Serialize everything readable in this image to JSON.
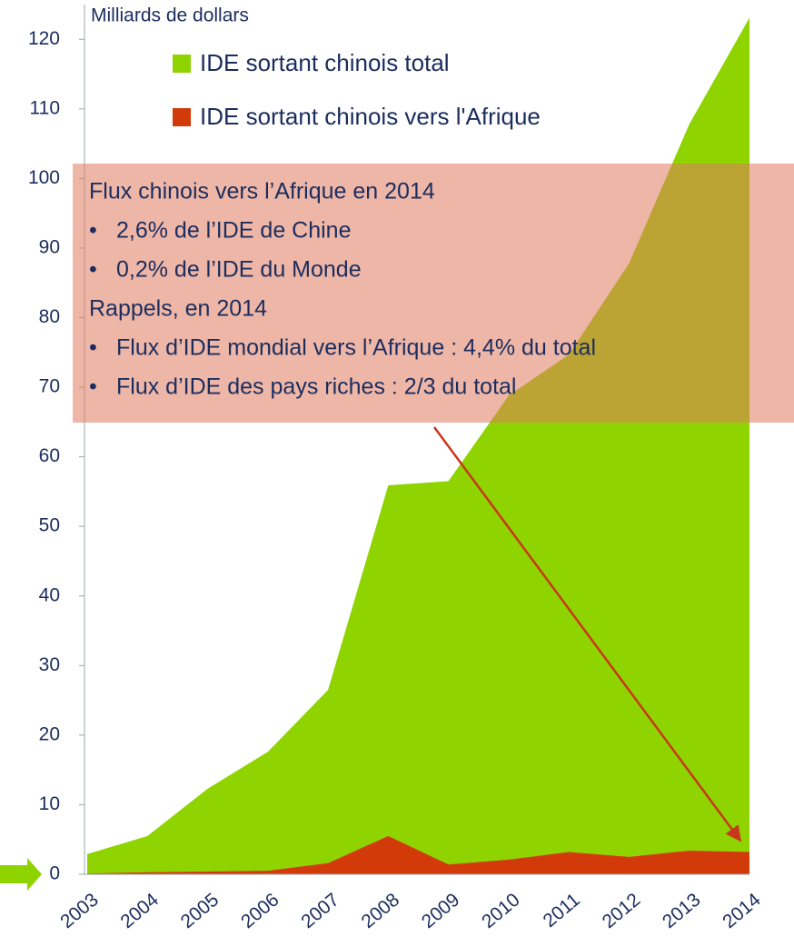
{
  "chart_data": {
    "type": "area",
    "y_label": "Milliards de dollars",
    "categories": [
      "2003",
      "2004",
      "2005",
      "2006",
      "2007",
      "2008",
      "2009",
      "2010",
      "2011",
      "2012",
      "2013",
      "2014"
    ],
    "series": [
      {
        "name": "IDE sortant chinois total",
        "color": "#8fd400",
        "values": [
          2.9,
          5.5,
          12.3,
          17.6,
          26.5,
          55.9,
          56.5,
          68.8,
          74.7,
          87.8,
          107.8,
          123.1
        ]
      },
      {
        "name": "IDE sortant chinois vers l'Afrique",
        "color": "#d23a0a",
        "values": [
          0.1,
          0.3,
          0.4,
          0.5,
          1.6,
          5.5,
          1.4,
          2.1,
          3.2,
          2.5,
          3.4,
          3.2
        ]
      }
    ],
    "ylim": [
      0,
      125
    ],
    "yticks": [
      0,
      10,
      20,
      30,
      40,
      50,
      60,
      70,
      80,
      90,
      100,
      110,
      120
    ],
    "annotations": [
      {
        "heading": "Flux chinois vers l’Afrique en 2014",
        "items": [
          "2,6% de l’IDE de Chine",
          "0,2% de l’IDE du Monde"
        ]
      },
      {
        "heading": "Rappels, en 2014",
        "items": [
          "Flux d’IDE mondial vers l’Afrique : 4,4% du total",
          "Flux d’IDE des pays riches : 2/3 du total"
        ]
      }
    ]
  }
}
